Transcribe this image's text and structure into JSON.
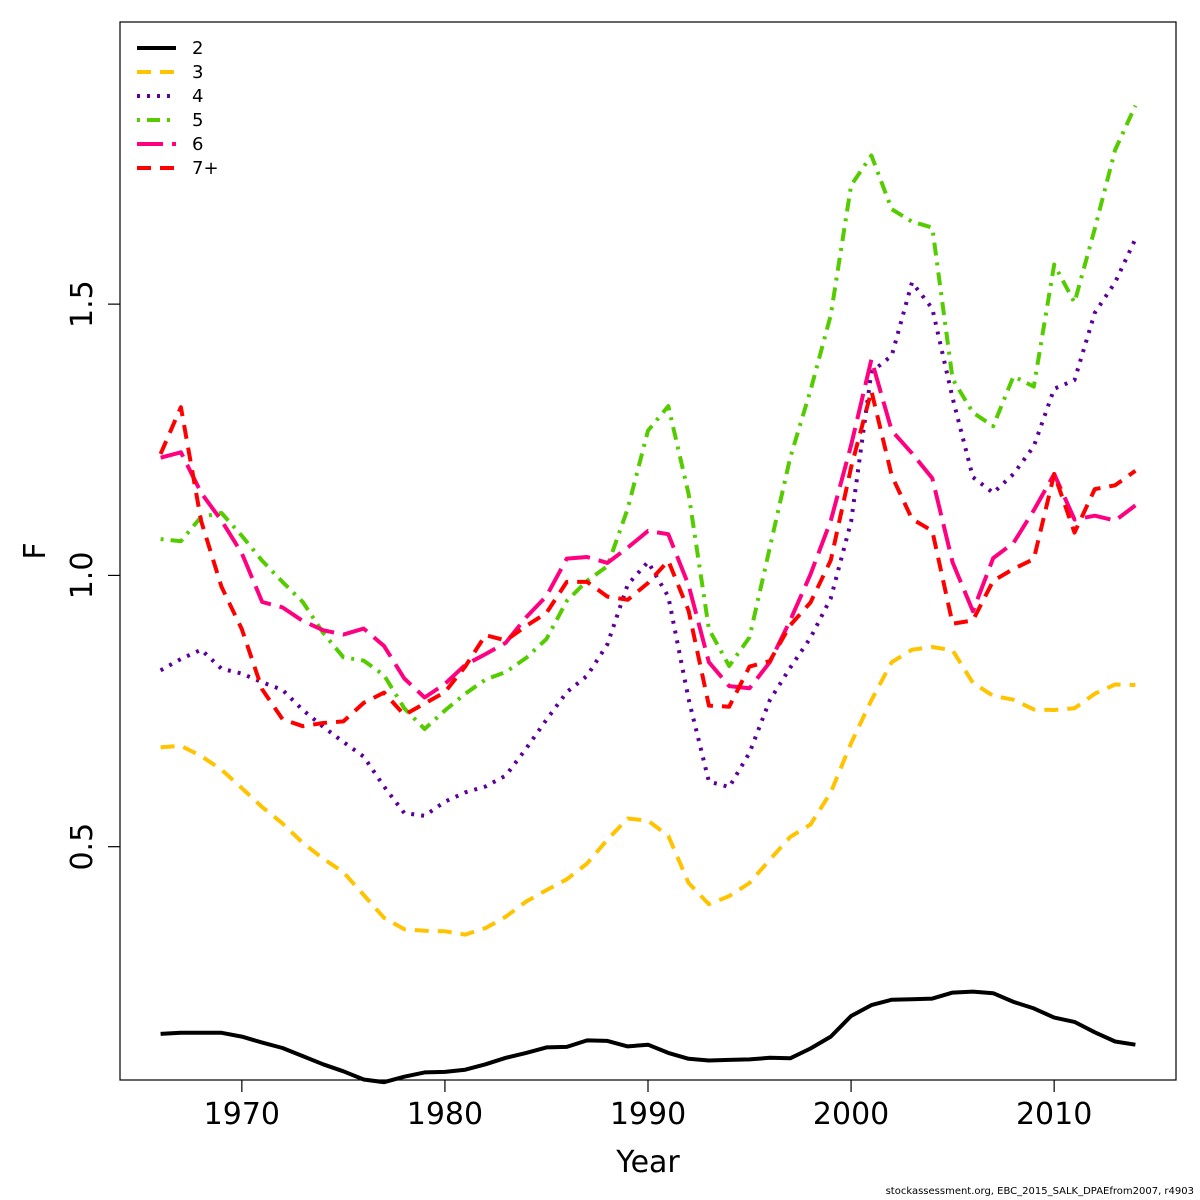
{
  "chart_data": {
    "type": "line",
    "xlabel": "Year",
    "ylabel": "F",
    "xlim": [
      1964,
      2016
    ],
    "ylim": [
      0.07,
      2.02
    ],
    "x_ticks": [
      1970,
      1980,
      1990,
      2000,
      2010
    ],
    "y_ticks": [
      0.5,
      1.0,
      1.5
    ],
    "x_tick_labels": [
      "1970",
      "1980",
      "1990",
      "2000",
      "2010"
    ],
    "y_tick_labels": [
      "0.5",
      "1.0",
      "1.5"
    ],
    "grid": false,
    "legend_position": "top-left",
    "x": [
      1966,
      1967,
      1968,
      1969,
      1970,
      1971,
      1972,
      1973,
      1974,
      1975,
      1976,
      1977,
      1978,
      1979,
      1980,
      1981,
      1982,
      1983,
      1984,
      1985,
      1986,
      1987,
      1988,
      1989,
      1990,
      1991,
      1992,
      1993,
      1994,
      1995,
      1996,
      1997,
      1998,
      1999,
      2000,
      2001,
      2002,
      2003,
      2004,
      2005,
      2006,
      2007,
      2008,
      2009,
      2010,
      2011,
      2012,
      2013,
      2014
    ],
    "series": [
      {
        "name": "2",
        "color": "#000000",
        "dash": "solid",
        "values": [
          0.155,
          0.157,
          0.157,
          0.157,
          0.15,
          0.139,
          0.129,
          0.114,
          0.099,
          0.086,
          0.071,
          0.066,
          0.076,
          0.084,
          0.085,
          0.089,
          0.099,
          0.111,
          0.12,
          0.13,
          0.131,
          0.143,
          0.142,
          0.132,
          0.135,
          0.12,
          0.109,
          0.106,
          0.107,
          0.108,
          0.111,
          0.11,
          0.128,
          0.15,
          0.188,
          0.208,
          0.218,
          0.219,
          0.22,
          0.231,
          0.233,
          0.23,
          0.214,
          0.202,
          0.185,
          0.177,
          0.158,
          0.141,
          0.135
        ]
      },
      {
        "name": "3",
        "color": "#FFC300",
        "dash": "dash",
        "values": [
          0.683,
          0.686,
          0.667,
          0.642,
          0.608,
          0.573,
          0.543,
          0.507,
          0.478,
          0.453,
          0.411,
          0.369,
          0.348,
          0.345,
          0.344,
          0.338,
          0.35,
          0.371,
          0.399,
          0.42,
          0.44,
          0.469,
          0.513,
          0.552,
          0.548,
          0.52,
          0.433,
          0.394,
          0.409,
          0.433,
          0.476,
          0.518,
          0.541,
          0.6,
          0.691,
          0.77,
          0.84,
          0.863,
          0.868,
          0.862,
          0.802,
          0.778,
          0.771,
          0.753,
          0.752,
          0.755,
          0.782,
          0.799,
          0.798
        ]
      },
      {
        "name": "4",
        "color": "#5C0099",
        "dash": "dot",
        "values": [
          0.825,
          0.846,
          0.863,
          0.828,
          0.819,
          0.803,
          0.789,
          0.752,
          0.721,
          0.693,
          0.666,
          0.611,
          0.562,
          0.557,
          0.583,
          0.6,
          0.611,
          0.631,
          0.681,
          0.734,
          0.785,
          0.815,
          0.873,
          0.983,
          1.025,
          0.961,
          0.772,
          0.62,
          0.61,
          0.673,
          0.77,
          0.83,
          0.885,
          0.958,
          1.099,
          1.375,
          1.405,
          1.54,
          1.492,
          1.327,
          1.181,
          1.152,
          1.187,
          1.238,
          1.344,
          1.36,
          1.484,
          1.54,
          1.62
        ]
      },
      {
        "name": "5",
        "color": "#55CC00",
        "dash": "dashdot",
        "values": [
          1.067,
          1.063,
          1.108,
          1.115,
          1.073,
          1.027,
          0.988,
          0.951,
          0.894,
          0.849,
          0.843,
          0.816,
          0.755,
          0.717,
          0.751,
          0.782,
          0.808,
          0.822,
          0.848,
          0.883,
          0.953,
          0.99,
          1.017,
          1.123,
          1.267,
          1.312,
          1.15,
          0.901,
          0.833,
          0.886,
          1.051,
          1.217,
          1.341,
          1.48,
          1.719,
          1.774,
          1.675,
          1.652,
          1.641,
          1.362,
          1.3,
          1.275,
          1.367,
          1.348,
          1.573,
          1.503,
          1.639,
          1.784,
          1.866
        ]
      },
      {
        "name": "6",
        "color": "#FF0080",
        "dash": "longdash",
        "values": [
          1.217,
          1.227,
          1.152,
          1.101,
          1.041,
          0.951,
          0.941,
          0.916,
          0.899,
          0.891,
          0.902,
          0.87,
          0.81,
          0.775,
          0.8,
          0.835,
          0.855,
          0.876,
          0.923,
          0.962,
          1.031,
          1.034,
          1.023,
          1.051,
          1.082,
          1.076,
          0.982,
          0.84,
          0.796,
          0.792,
          0.84,
          0.917,
          1.002,
          1.101,
          1.24,
          1.398,
          1.267,
          1.225,
          1.179,
          1.024,
          0.934,
          1.032,
          1.06,
          1.12,
          1.187,
          1.103,
          1.11,
          1.101,
          1.129
        ]
      },
      {
        "name": "7+",
        "color": "#FF0000",
        "dash": "dash",
        "values": [
          1.224,
          1.31,
          1.1,
          0.979,
          0.901,
          0.79,
          0.735,
          0.722,
          0.728,
          0.731,
          0.765,
          0.784,
          0.743,
          0.764,
          0.785,
          0.832,
          0.89,
          0.88,
          0.907,
          0.931,
          0.988,
          0.988,
          0.961,
          0.955,
          0.986,
          1.027,
          0.935,
          0.76,
          0.758,
          0.832,
          0.842,
          0.908,
          0.95,
          1.028,
          1.199,
          1.34,
          1.184,
          1.104,
          1.082,
          0.911,
          0.917,
          0.99,
          1.012,
          1.03,
          1.187,
          1.079,
          1.159,
          1.166,
          1.193
        ]
      }
    ]
  },
  "footer": "stockassessment.org, EBC_2015_SALK_DPAEfrom2007, r4903"
}
